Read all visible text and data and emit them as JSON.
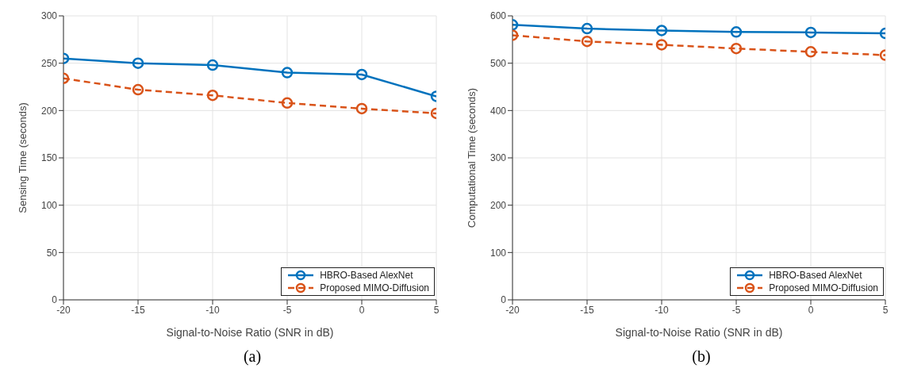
{
  "chart_data": [
    {
      "type": "line",
      "xlabel": "Signal-to-Noise Ratio (SNR in dB)",
      "ylabel": "Sensing Time (seconds)",
      "x": [
        -20,
        -15,
        -10,
        -5,
        0,
        5
      ],
      "xlim": [
        -20,
        5
      ],
      "xticks": [
        -20,
        -15,
        -10,
        -5,
        0,
        5
      ],
      "ylim": [
        0,
        300
      ],
      "yticks": [
        0,
        50,
        100,
        150,
        200,
        250,
        300
      ],
      "grid": true,
      "legend": "bottom right",
      "marker": "circle",
      "annotations": [
        "(a)"
      ],
      "series": [
        {
          "name": "HBRO-Based AlexNet",
          "color": "#0072bd",
          "line_style": "solid",
          "values": [
            255,
            250,
            248,
            240,
            238,
            215
          ]
        },
        {
          "name": "Proposed MIMO-Diffusion",
          "color": "#d95319",
          "line_style": "dashed",
          "values": [
            234,
            222,
            216,
            208,
            202,
            197
          ]
        }
      ]
    },
    {
      "type": "line",
      "xlabel": "Signal-to-Noise Ratio (SNR in dB)",
      "ylabel": "Computational Time (seconds)",
      "x": [
        -20,
        -15,
        -10,
        -5,
        0,
        5
      ],
      "xlim": [
        -20,
        5
      ],
      "xticks": [
        -20,
        -15,
        -10,
        -5,
        0,
        5
      ],
      "ylim": [
        0,
        600
      ],
      "yticks": [
        0,
        100,
        200,
        300,
        400,
        500,
        600
      ],
      "grid": true,
      "legend": "bottom right",
      "marker": "circle",
      "annotations": [
        "(b)"
      ],
      "series": [
        {
          "name": "HBRO-Based AlexNet",
          "color": "#0072bd",
          "line_style": "solid",
          "values": [
            581,
            573,
            569,
            566,
            565,
            563
          ]
        },
        {
          "name": "Proposed MIMO-Diffusion",
          "color": "#d95319",
          "line_style": "dashed",
          "values": [
            559,
            546,
            539,
            531,
            524,
            517
          ]
        }
      ]
    }
  ]
}
